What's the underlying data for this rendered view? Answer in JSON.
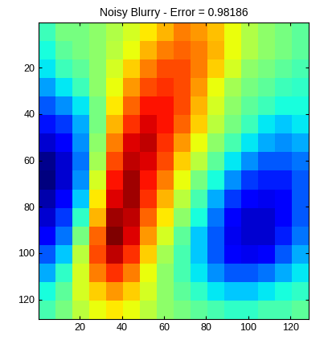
{
  "chart_data": {
    "type": "heatmap",
    "title": "Noisy Blurry - Error = 0.98186",
    "color": "jet",
    "xlim": [
      0.5,
      128.5
    ],
    "ylim": [
      128.5,
      0.5
    ],
    "xticks": [
      20,
      40,
      60,
      80,
      100,
      120
    ],
    "yticks": [
      20,
      40,
      60,
      80,
      100,
      120
    ],
    "cells": [
      [
        0.45,
        0.5,
        0.5,
        0.52,
        0.55,
        0.58,
        0.62,
        0.66,
        0.7,
        0.68,
        0.65,
        0.6,
        0.55,
        0.52,
        0.5,
        0.48
      ],
      [
        0.42,
        0.48,
        0.5,
        0.52,
        0.56,
        0.6,
        0.66,
        0.7,
        0.72,
        0.7,
        0.66,
        0.6,
        0.55,
        0.52,
        0.5,
        0.48
      ],
      [
        0.4,
        0.45,
        0.48,
        0.52,
        0.58,
        0.64,
        0.7,
        0.74,
        0.74,
        0.7,
        0.64,
        0.58,
        0.52,
        0.5,
        0.48,
        0.46
      ],
      [
        0.35,
        0.4,
        0.45,
        0.52,
        0.6,
        0.68,
        0.74,
        0.76,
        0.74,
        0.68,
        0.6,
        0.54,
        0.5,
        0.48,
        0.45,
        0.44
      ],
      [
        0.3,
        0.34,
        0.4,
        0.5,
        0.62,
        0.72,
        0.78,
        0.78,
        0.74,
        0.66,
        0.58,
        0.52,
        0.48,
        0.45,
        0.42,
        0.42
      ],
      [
        0.25,
        0.28,
        0.36,
        0.5,
        0.66,
        0.76,
        0.8,
        0.78,
        0.72,
        0.64,
        0.56,
        0.5,
        0.45,
        0.4,
        0.38,
        0.4
      ],
      [
        0.2,
        0.24,
        0.34,
        0.52,
        0.7,
        0.8,
        0.82,
        0.76,
        0.68,
        0.6,
        0.52,
        0.46,
        0.4,
        0.36,
        0.34,
        0.36
      ],
      [
        0.16,
        0.2,
        0.32,
        0.54,
        0.74,
        0.82,
        0.8,
        0.74,
        0.64,
        0.56,
        0.48,
        0.4,
        0.34,
        0.3,
        0.3,
        0.32
      ],
      [
        0.15,
        0.2,
        0.34,
        0.58,
        0.78,
        0.84,
        0.78,
        0.7,
        0.6,
        0.5,
        0.42,
        0.34,
        0.28,
        0.26,
        0.26,
        0.3
      ],
      [
        0.18,
        0.24,
        0.38,
        0.62,
        0.8,
        0.84,
        0.76,
        0.66,
        0.56,
        0.46,
        0.36,
        0.28,
        0.24,
        0.22,
        0.24,
        0.3
      ],
      [
        0.2,
        0.28,
        0.44,
        0.66,
        0.84,
        0.82,
        0.72,
        0.62,
        0.52,
        0.42,
        0.32,
        0.24,
        0.2,
        0.2,
        0.24,
        0.3
      ],
      [
        0.24,
        0.32,
        0.5,
        0.72,
        0.86,
        0.8,
        0.68,
        0.58,
        0.48,
        0.38,
        0.3,
        0.22,
        0.2,
        0.2,
        0.26,
        0.32
      ],
      [
        0.3,
        0.38,
        0.56,
        0.74,
        0.82,
        0.76,
        0.64,
        0.54,
        0.46,
        0.38,
        0.3,
        0.24,
        0.22,
        0.24,
        0.3,
        0.36
      ],
      [
        0.36,
        0.44,
        0.58,
        0.7,
        0.76,
        0.7,
        0.6,
        0.52,
        0.46,
        0.4,
        0.34,
        0.3,
        0.3,
        0.32,
        0.36,
        0.4
      ],
      [
        0.42,
        0.48,
        0.58,
        0.64,
        0.68,
        0.64,
        0.58,
        0.52,
        0.48,
        0.44,
        0.4,
        0.38,
        0.38,
        0.4,
        0.42,
        0.44
      ],
      [
        0.46,
        0.5,
        0.56,
        0.6,
        0.62,
        0.6,
        0.56,
        0.52,
        0.5,
        0.48,
        0.46,
        0.44,
        0.44,
        0.46,
        0.46,
        0.48
      ]
    ]
  }
}
